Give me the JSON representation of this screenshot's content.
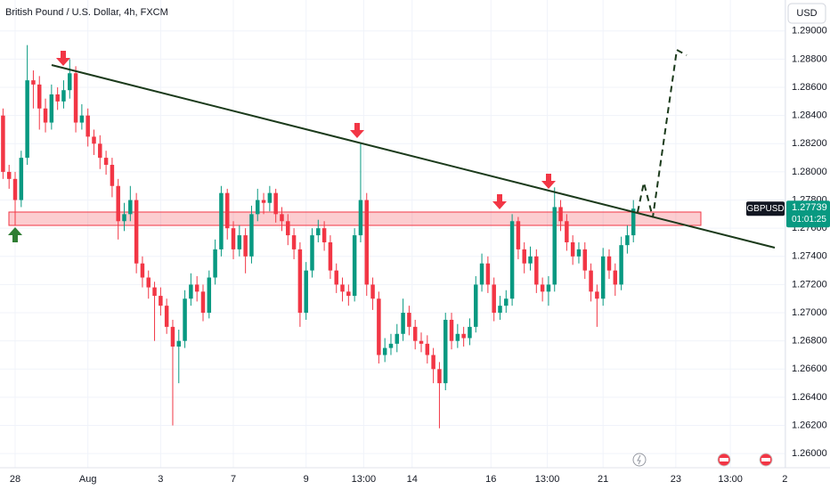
{
  "chart_data": {
    "type": "candlestick",
    "title": "British Pound / U.S. Dollar, 4h, FXCM",
    "symbol": "GBPUSD",
    "countdown": "01:01:25",
    "currency": "USD",
    "up_color": "#089981",
    "down_color": "#f23645",
    "grid": true,
    "open": [
      1.284,
      1.28,
      1.2795,
      1.278,
      1.281,
      1.2865,
      1.2862,
      1.2845,
      1.2835,
      1.2855,
      1.285,
      1.2858,
      1.287,
      1.2835,
      1.284,
      1.2825,
      1.282,
      1.281,
      1.2805,
      1.279,
      1.2765,
      1.277,
      1.278,
      1.2735,
      1.2725,
      1.2718,
      1.2712,
      1.2705,
      1.269,
      1.2676,
      1.268,
      1.271,
      1.272,
      1.2715,
      1.27,
      1.2725,
      1.2745,
      1.2785,
      1.276,
      1.2745,
      1.2755,
      1.274,
      1.277,
      1.278,
      1.2778,
      1.2785,
      1.277,
      1.2765,
      1.2755,
      1.2745,
      1.27,
      1.273,
      1.2755,
      1.276,
      1.275,
      1.273,
      1.272,
      1.2715,
      1.2712,
      1.2755,
      1.278,
      1.272,
      1.271,
      1.267,
      1.2675,
      1.2678,
      1.2685,
      1.27,
      1.269,
      1.268,
      1.2678,
      1.267,
      1.266,
      1.265,
      1.2695,
      1.268,
      1.2685,
      1.2682,
      1.269,
      1.272,
      1.2735,
      1.272,
      1.27,
      1.2705,
      1.271,
      1.2765,
      1.2745,
      1.2735,
      1.274,
      1.272,
      1.2715,
      1.272,
      1.2775,
      1.2765,
      1.275,
      1.274,
      1.2745,
      1.273,
      1.2715,
      1.271,
      1.274,
      1.273,
      1.272,
      1.2748,
      1.2755
    ],
    "high": [
      1.2845,
      1.2805,
      1.28,
      1.2815,
      1.289,
      1.2872,
      1.2868,
      1.2852,
      1.2862,
      1.286,
      1.2865,
      1.288,
      1.2875,
      1.2848,
      1.2845,
      1.283,
      1.2826,
      1.2815,
      1.281,
      1.2795,
      1.2778,
      1.279,
      1.2785,
      1.274,
      1.273,
      1.2722,
      1.2718,
      1.271,
      1.2695,
      1.2688,
      1.2716,
      1.2728,
      1.2726,
      1.272,
      1.273,
      1.2752,
      1.279,
      1.2788,
      1.2765,
      1.2762,
      1.276,
      1.2776,
      1.2788,
      1.2785,
      1.279,
      1.2788,
      1.2775,
      1.277,
      1.276,
      1.275,
      1.2736,
      1.276,
      1.2766,
      1.2765,
      1.2755,
      1.2735,
      1.2725,
      1.272,
      1.276,
      1.282,
      1.2785,
      1.2725,
      1.2715,
      1.2682,
      1.2685,
      1.2692,
      1.271,
      1.2705,
      1.2695,
      1.2686,
      1.2684,
      1.2675,
      1.2665,
      1.27,
      1.27,
      1.2692,
      1.269,
      1.2696,
      1.2726,
      1.2742,
      1.274,
      1.2725,
      1.2712,
      1.2716,
      1.277,
      1.2768,
      1.275,
      1.2747,
      1.2745,
      1.2725,
      1.2726,
      1.2789,
      1.278,
      1.277,
      1.2755,
      1.275,
      1.275,
      1.2735,
      1.272,
      1.2746,
      1.2745,
      1.2735,
      1.2754,
      1.2762,
      1.278
    ],
    "low": [
      1.2795,
      1.2788,
      1.2762,
      1.2775,
      1.2805,
      1.2845,
      1.283,
      1.2828,
      1.283,
      1.2844,
      1.2845,
      1.2852,
      1.2828,
      1.283,
      1.2818,
      1.2812,
      1.2802,
      1.2798,
      1.2782,
      1.2752,
      1.2758,
      1.2765,
      1.2728,
      1.2718,
      1.271,
      1.268,
      1.2698,
      1.2685,
      1.262,
      1.265,
      1.2675,
      1.2705,
      1.2708,
      1.2694,
      1.2696,
      1.272,
      1.274,
      1.2752,
      1.2738,
      1.274,
      1.2728,
      1.2735,
      1.2765,
      1.277,
      1.2772,
      1.2764,
      1.2758,
      1.2748,
      1.2738,
      1.269,
      1.2695,
      1.2725,
      1.275,
      1.2744,
      1.2724,
      1.2714,
      1.2708,
      1.2705,
      1.2708,
      1.275,
      1.2712,
      1.2702,
      1.2664,
      1.2665,
      1.267,
      1.2672,
      1.268,
      1.2684,
      1.2674,
      1.2672,
      1.2664,
      1.265,
      1.2618,
      1.2645,
      1.2674,
      1.2675,
      1.2676,
      1.2677,
      1.2686,
      1.2715,
      1.2714,
      1.2694,
      1.2695,
      1.27,
      1.2705,
      1.2738,
      1.2728,
      1.273,
      1.2714,
      1.2708,
      1.2705,
      1.2715,
      1.2758,
      1.2744,
      1.2734,
      1.2735,
      1.2724,
      1.2708,
      1.269,
      1.2705,
      1.2724,
      1.2712,
      1.2716,
      1.2742,
      1.275
    ],
    "close": [
      1.28,
      1.2795,
      1.278,
      1.281,
      1.2865,
      1.2862,
      1.2845,
      1.2835,
      1.2855,
      1.285,
      1.2858,
      1.287,
      1.2835,
      1.284,
      1.2825,
      1.282,
      1.281,
      1.2805,
      1.279,
      1.2765,
      1.277,
      1.278,
      1.2735,
      1.2725,
      1.2718,
      1.2712,
      1.2705,
      1.269,
      1.2676,
      1.268,
      1.271,
      1.272,
      1.2715,
      1.27,
      1.2725,
      1.2745,
      1.2785,
      1.276,
      1.2745,
      1.2755,
      1.274,
      1.277,
      1.278,
      1.2778,
      1.2785,
      1.277,
      1.2765,
      1.2755,
      1.2745,
      1.27,
      1.273,
      1.2755,
      1.276,
      1.275,
      1.273,
      1.272,
      1.2715,
      1.2712,
      1.2755,
      1.278,
      1.272,
      1.271,
      1.267,
      1.2675,
      1.2678,
      1.2685,
      1.27,
      1.269,
      1.268,
      1.2678,
      1.267,
      1.266,
      1.265,
      1.2695,
      1.268,
      1.2685,
      1.2682,
      1.269,
      1.272,
      1.2735,
      1.272,
      1.27,
      1.2705,
      1.271,
      1.2765,
      1.2745,
      1.2735,
      1.274,
      1.272,
      1.2715,
      1.272,
      1.2775,
      1.2765,
      1.275,
      1.274,
      1.2745,
      1.273,
      1.2715,
      1.271,
      1.274,
      1.273,
      1.272,
      1.2748,
      1.2755,
      1.27739
    ],
    "ylim": [
      1.259,
      1.2922
    ],
    "yticks": [
      {
        "value": 1.29,
        "label": "1.29000"
      },
      {
        "value": 1.288,
        "label": "1.28800"
      },
      {
        "value": 1.286,
        "label": "1.28600"
      },
      {
        "value": 1.284,
        "label": "1.28400"
      },
      {
        "value": 1.282,
        "label": "1.28200"
      },
      {
        "value": 1.28,
        "label": "1.28000"
      },
      {
        "value": 1.278,
        "label": "1.27800"
      },
      {
        "value": 1.276,
        "label": "1.27600"
      },
      {
        "value": 1.274,
        "label": "1.27400"
      },
      {
        "value": 1.272,
        "label": "1.27200"
      },
      {
        "value": 1.27,
        "label": "1.27000"
      },
      {
        "value": 1.268,
        "label": "1.26800"
      },
      {
        "value": 1.266,
        "label": "1.26600"
      },
      {
        "value": 1.264,
        "label": "1.26400"
      },
      {
        "value": 1.262,
        "label": "1.26200"
      },
      {
        "value": 1.26,
        "label": "1.26000"
      }
    ],
    "xlim": [
      -0.5,
      128.8
    ],
    "xticks": [
      {
        "value": 2,
        "label": "28"
      },
      {
        "value": 14,
        "label": "Aug"
      },
      {
        "value": 26,
        "label": "3"
      },
      {
        "value": 38,
        "label": "7"
      },
      {
        "value": 50,
        "label": "9"
      },
      {
        "value": 59.5,
        "label": "13:00"
      },
      {
        "value": 67.5,
        "label": "14"
      },
      {
        "value": 80.5,
        "label": "16"
      },
      {
        "value": 89.8,
        "label": "13:00"
      },
      {
        "value": 99,
        "label": "21"
      },
      {
        "value": 111,
        "label": "23"
      },
      {
        "value": 120,
        "label": "13:00"
      },
      {
        "value": 129,
        "label": "2"
      }
    ]
  }
}
